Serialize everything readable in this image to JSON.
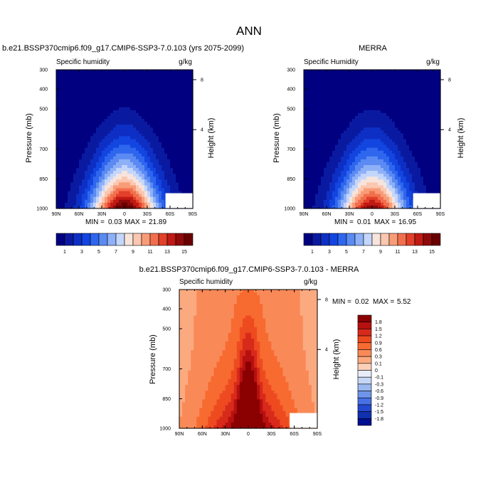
{
  "figure": {
    "title": "ANN"
  },
  "chart_data": [
    {
      "type": "heatmap",
      "panel": "model",
      "title": "b.e21.BSSP370cmip6.f09_g17.CMIP6-SSP3-7.0.103 (yrs 2075-2099)",
      "subtitle_left": "Specific humidity",
      "subtitle_right": "g/kg",
      "xlabel": "",
      "ylabel": "Pressure (mb)",
      "ylabel_right": "Height (km)",
      "x_ticks": [
        "90N",
        "60N",
        "30N",
        "0",
        "30S",
        "60S",
        "90S"
      ],
      "y_ticks": [
        "300",
        "400",
        "500",
        "700",
        "850",
        "1000"
      ],
      "y_ticks_right": [
        "8",
        "4"
      ],
      "ylim": [
        1000,
        300
      ],
      "stats": {
        "min_label": "MIN =",
        "min": "0.03",
        "max_label": "MAX =",
        "max": "21.89"
      },
      "colorbar": {
        "orientation": "horizontal",
        "labels": [
          "1",
          "3",
          "5",
          "7",
          "9",
          "11",
          "13",
          "15"
        ],
        "levels": [
          1,
          2,
          3,
          4,
          5,
          6,
          7,
          8,
          9,
          10,
          11,
          12,
          13,
          14,
          15
        ],
        "colors": [
          "#000080",
          "#0a1aa0",
          "#0d2fc4",
          "#1345e0",
          "#2f66ee",
          "#5a8af2",
          "#8eb0f6",
          "#c4d6fb",
          "#f7e4dc",
          "#fbc7b0",
          "#f89c78",
          "#f26f4e",
          "#e2402a",
          "#c01a14",
          "#900a0a",
          "#6a0000"
        ]
      },
      "peak_value": 16
    },
    {
      "type": "heatmap",
      "panel": "obs",
      "title": "MERRA",
      "subtitle_left": "Specific Humidity",
      "subtitle_right": "g/kg",
      "xlabel": "",
      "ylabel": "Pressure (mb)",
      "ylabel_right": "Height (km)",
      "x_ticks": [
        "90N",
        "60N",
        "30N",
        "0",
        "30S",
        "60S",
        "90S"
      ],
      "y_ticks": [
        "300",
        "400",
        "500",
        "700",
        "850",
        "1000"
      ],
      "y_ticks_right": [
        "8",
        "4"
      ],
      "ylim": [
        1000,
        300
      ],
      "stats": {
        "min_label": "MIN =",
        "min": "0.01",
        "max_label": "MAX =",
        "max": "16.95"
      },
      "colorbar": {
        "orientation": "horizontal",
        "labels": [
          "1",
          "3",
          "5",
          "7",
          "9",
          "11",
          "13",
          "15"
        ],
        "levels": [
          1,
          2,
          3,
          4,
          5,
          6,
          7,
          8,
          9,
          10,
          11,
          12,
          13,
          14,
          15
        ],
        "colors": [
          "#000080",
          "#0a1aa0",
          "#0d2fc4",
          "#1345e0",
          "#2f66ee",
          "#5a8af2",
          "#8eb0f6",
          "#c4d6fb",
          "#f7e4dc",
          "#fbc7b0",
          "#f89c78",
          "#f26f4e",
          "#e2402a",
          "#c01a14",
          "#900a0a",
          "#6a0000"
        ]
      },
      "peak_value": 14.5
    },
    {
      "type": "heatmap",
      "panel": "diff",
      "title": "b.e21.BSSP370cmip6.f09_g17.CMIP6-SSP3-7.0.103 - MERRA",
      "subtitle_left": "Specific humidity",
      "subtitle_right": "g/kg",
      "xlabel": "",
      "ylabel": "Pressure (mb)",
      "ylabel_right": "Height (km)",
      "x_ticks": [
        "90N",
        "60N",
        "30N",
        "0",
        "30S",
        "60S",
        "90S"
      ],
      "y_ticks": [
        "300",
        "400",
        "500",
        "700",
        "850",
        "1000"
      ],
      "y_ticks_right": [
        "8",
        "4"
      ],
      "ylim": [
        1000,
        300
      ],
      "stats": {
        "min_label": "MIN =",
        "min": "0.02",
        "max_label": "MAX =",
        "max": "5.52"
      },
      "colorbar": {
        "orientation": "vertical",
        "labels": [
          "1.8",
          "1.5",
          "1.2",
          "0.9",
          "0.6",
          "0.3",
          "0.1",
          "0",
          "-0.1",
          "-0.3",
          "-0.6",
          "-0.9",
          "-1.2",
          "-1.5",
          "-1.8"
        ],
        "levels": [
          1.8,
          1.5,
          1.2,
          0.9,
          0.6,
          0.3,
          0.1,
          0,
          -0.1,
          -0.3,
          -0.6,
          -0.9,
          -1.2,
          -1.5,
          -1.8
        ],
        "colors": [
          "#8b0000",
          "#b71010",
          "#d82a1a",
          "#ee4a20",
          "#f76a30",
          "#f98a58",
          "#fbaa80",
          "#fcd0b8",
          "#e8ecf8",
          "#c5d6f6",
          "#9bb8f0",
          "#6f95ea",
          "#4670e4",
          "#2449d0",
          "#1030b0",
          "#000e90"
        ]
      }
    }
  ]
}
